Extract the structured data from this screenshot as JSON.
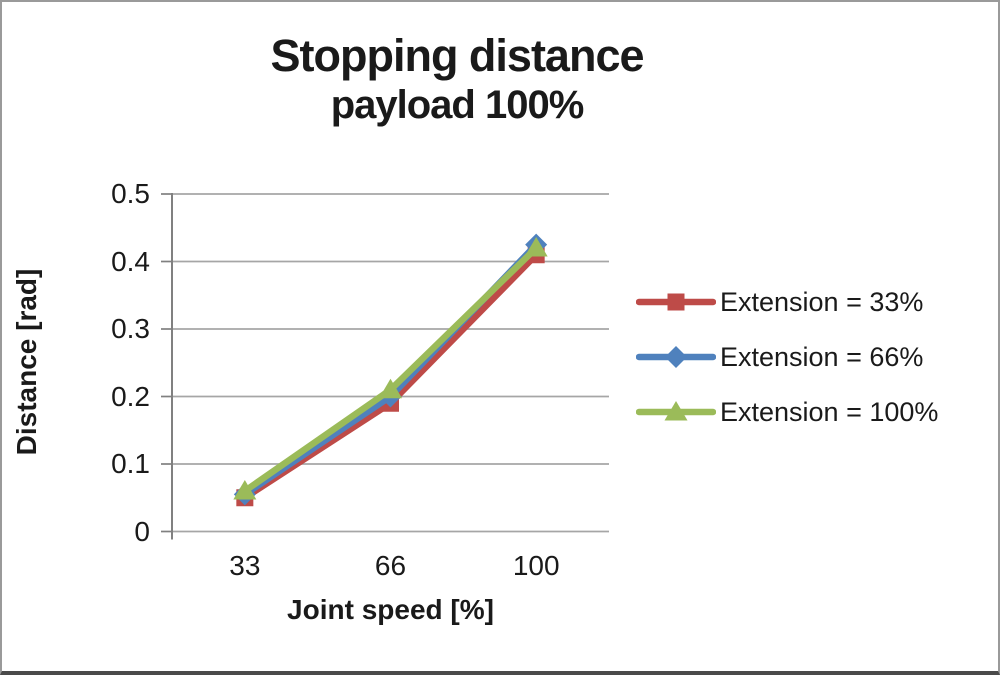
{
  "page": {
    "background": "#ffffff",
    "border_color": "#9a9a9a",
    "bottom_border_color": "#4a4a4a"
  },
  "chart_data": {
    "type": "line",
    "title": "Stopping distance",
    "subtitle": "payload 100%",
    "xlabel": "Joint speed [%]",
    "ylabel": "Distance [rad]",
    "categories": [
      33,
      66,
      100
    ],
    "x_tick_labels": [
      "33",
      "66",
      "100"
    ],
    "y_ticks": [
      0,
      0.1,
      0.2,
      0.3,
      0.4,
      0.5
    ],
    "y_tick_labels": [
      "0",
      "0.1",
      "0.2",
      "0.3",
      "0.4",
      "0.5"
    ],
    "ylim": [
      0,
      0.5
    ],
    "grid": true,
    "legend_position": "right",
    "gridline_color": "#a6a6a6",
    "axis_color": "#808080",
    "text_color": "#1a1a1a",
    "series": [
      {
        "name": "Extension = 33%",
        "color": "#be4b48",
        "marker": "square",
        "values": [
          0.05,
          0.19,
          0.41
        ]
      },
      {
        "name": "Extension = 66%",
        "color": "#4f81bd",
        "marker": "diamond",
        "values": [
          0.055,
          0.2,
          0.425
        ]
      },
      {
        "name": "Extension = 100%",
        "color": "#9bbb59",
        "marker": "triangle",
        "values": [
          0.06,
          0.21,
          0.42
        ]
      }
    ]
  }
}
